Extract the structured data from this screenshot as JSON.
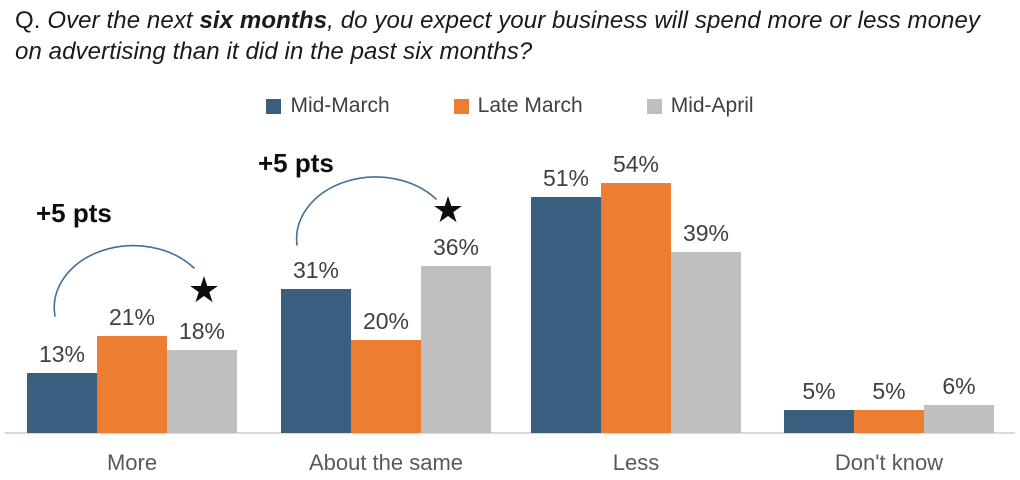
{
  "title": {
    "prefix": "Q.",
    "italic_before": " Over the next ",
    "bold": "six months",
    "italic_after": ", do you expect your business will spend more or less money on advertising than it did in the past six months?"
  },
  "colors": {
    "mid_march_blue": "#3A5E7D",
    "late_march_orange": "#ED7D31",
    "mid_april_gray": "#BFBFBF",
    "arc_blue": "#41719C",
    "axis_gray": "#D9D9D9"
  },
  "chart_data": {
    "type": "bar",
    "categories": [
      "More",
      "About the same",
      "Less",
      "Don't know"
    ],
    "series": [
      {
        "name": "Mid-March",
        "color": "#3A5E7D",
        "values": [
          13,
          31,
          51,
          5
        ]
      },
      {
        "name": "Late March",
        "color": "#ED7D31",
        "values": [
          21,
          20,
          54,
          5
        ]
      },
      {
        "name": "Mid-April",
        "color": "#BFBFBF",
        "values": [
          18,
          36,
          39,
          6
        ]
      }
    ],
    "value_suffix": "%",
    "ylim": [
      0,
      60
    ],
    "grid": false,
    "legend_position": "top",
    "annotations": [
      {
        "text": "+5 pts",
        "star": "★",
        "category": "More"
      },
      {
        "text": "+5 pts",
        "star": "★",
        "category": "About the same"
      }
    ]
  }
}
